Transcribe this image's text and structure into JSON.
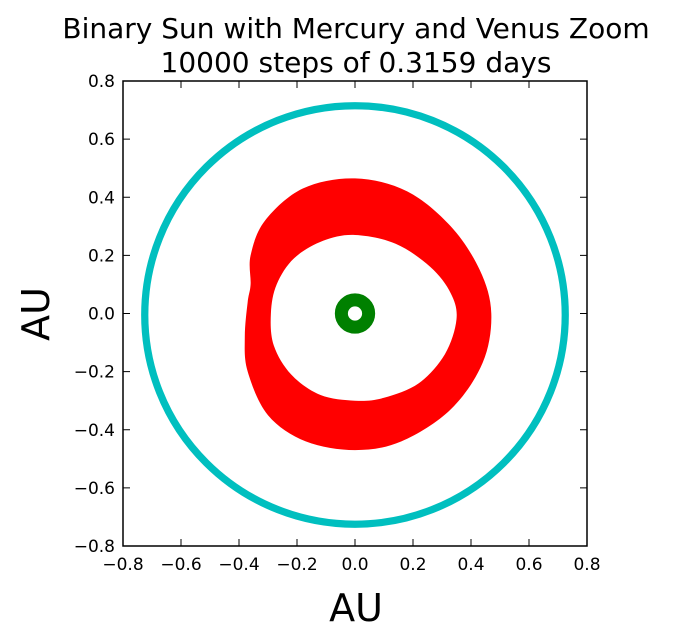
{
  "chart_data": {
    "type": "scatter",
    "title": "Binary Sun with Mercury and Venus Zoom",
    "subtitle": "10000 steps of 0.3159 days",
    "xlabel": "AU",
    "ylabel": "AU",
    "xlim": [
      -0.8,
      0.8
    ],
    "ylim": [
      -0.8,
      0.8
    ],
    "xticks": [
      -0.8,
      -0.6,
      -0.4,
      -0.2,
      0.0,
      0.2,
      0.4,
      0.6,
      0.8
    ],
    "yticks": [
      -0.8,
      -0.6,
      -0.4,
      -0.2,
      0.0,
      0.2,
      0.4,
      0.6,
      0.8
    ],
    "xtick_labels": [
      "−0.8",
      "−0.6",
      "−0.4",
      "−0.2",
      "0.0",
      "0.2",
      "0.4",
      "0.6",
      "0.8"
    ],
    "ytick_labels": [
      "−0.8",
      "−0.6",
      "−0.4",
      "−0.2",
      "0.0",
      "0.2",
      "0.4",
      "0.6",
      "0.8"
    ],
    "grid": false,
    "legend": "none",
    "series": [
      {
        "color": "#00bfbf",
        "shape": "ring",
        "center": [
          0.0,
          -0.005
        ],
        "radius_x": 0.725,
        "radius_y": 0.72,
        "band_width": 0.025
      },
      {
        "color": "#ff0000",
        "shape": "band",
        "outer": [
          [
            0.0,
            0.465
          ],
          [
            0.18,
            0.42
          ],
          [
            0.33,
            0.3
          ],
          [
            0.43,
            0.15
          ],
          [
            0.47,
            0.0
          ],
          [
            0.44,
            -0.17
          ],
          [
            0.33,
            -0.33
          ],
          [
            0.16,
            -0.44
          ],
          [
            0.0,
            -0.47
          ],
          [
            -0.17,
            -0.44
          ],
          [
            -0.3,
            -0.35
          ],
          [
            -0.37,
            -0.2
          ],
          [
            -0.38,
            -0.08
          ],
          [
            -0.37,
            0.04
          ],
          [
            -0.36,
            0.1
          ],
          [
            -0.36,
            0.2
          ],
          [
            -0.31,
            0.32
          ],
          [
            -0.18,
            0.43
          ]
        ],
        "inner": [
          [
            0.0,
            0.27
          ],
          [
            0.14,
            0.24
          ],
          [
            0.26,
            0.16
          ],
          [
            0.33,
            0.07
          ],
          [
            0.35,
            -0.02
          ],
          [
            0.31,
            -0.14
          ],
          [
            0.22,
            -0.24
          ],
          [
            0.1,
            -0.29
          ],
          [
            0.0,
            -0.3
          ],
          [
            -0.12,
            -0.28
          ],
          [
            -0.22,
            -0.21
          ],
          [
            -0.28,
            -0.11
          ],
          [
            -0.29,
            0.0
          ],
          [
            -0.27,
            0.1
          ],
          [
            -0.21,
            0.19
          ],
          [
            -0.11,
            0.25
          ]
        ]
      },
      {
        "color": "#008000",
        "shape": "ring",
        "center": [
          0.0,
          0.0
        ],
        "radius_x": 0.047,
        "radius_y": 0.047,
        "band_width": 0.045
      }
    ]
  }
}
